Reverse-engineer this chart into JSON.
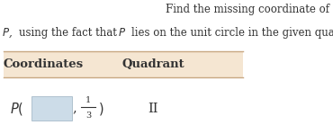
{
  "title_line1": "Find the missing coordinate of",
  "title_line2": "P, using the fact that P lies on the unit circle in the given quadrant.",
  "col1_header": "Coordinates",
  "col2_header": "Quadrant",
  "header_bg": "#f5e6d2",
  "header_line_color": "#c8a882",
  "fraction_num": "1",
  "fraction_den": "3",
  "row_text_col2": "II",
  "blank_box_color": "#ccdce8",
  "blank_box_edge": "#99b0c0",
  "text_color": "#333333",
  "background": "#ffffff",
  "title_fontsize": 8.5,
  "header_fontsize": 9.5,
  "row_fontsize": 10.5,
  "fig_width": 3.7,
  "fig_height": 1.49,
  "dpi": 100
}
